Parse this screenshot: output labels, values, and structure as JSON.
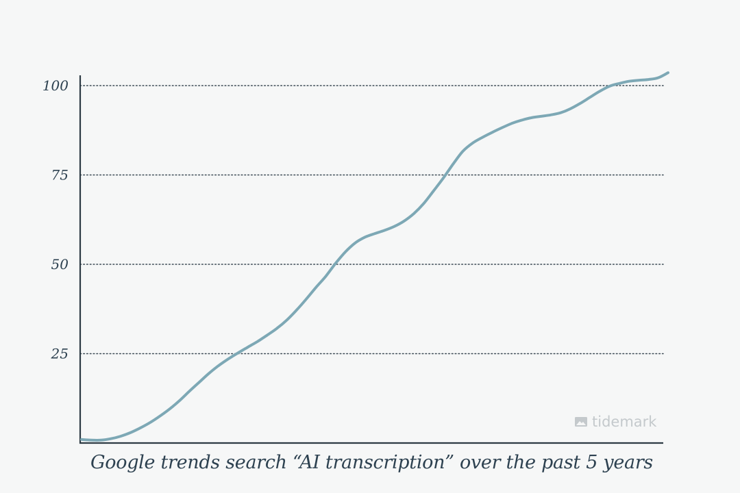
{
  "chart_data": {
    "type": "line",
    "title": "Google trends search “AI transcription” over the past 5 years",
    "xlabel": "",
    "ylabel": "",
    "ylim": [
      0,
      100
    ],
    "yticks": [
      25,
      50,
      75,
      100
    ],
    "yticklabels": [
      "25",
      "50",
      "75",
      "100"
    ],
    "grid": "horizontal dotted",
    "series": [
      {
        "color": "#7da8b5",
        "x": [
          0,
          1,
          2,
          3,
          4,
          5,
          6,
          7,
          8,
          9,
          10,
          11,
          12,
          13,
          14,
          15,
          16,
          17,
          18,
          19,
          20,
          21,
          22,
          23,
          24,
          25,
          26,
          27,
          28,
          29,
          30,
          31,
          32,
          33,
          34,
          35,
          36,
          37,
          38,
          39,
          40,
          41,
          42,
          43,
          44,
          45,
          46,
          47,
          48,
          49,
          50,
          51,
          52,
          53,
          54,
          55,
          56,
          57,
          58,
          59,
          60
        ],
        "values": [
          1.0,
          0.8,
          0.8,
          1.2,
          1.9,
          2.9,
          4.2,
          5.7,
          7.5,
          9.5,
          11.8,
          14.4,
          16.9,
          19.4,
          21.6,
          23.5,
          25.2,
          26.8,
          28.4,
          30.2,
          32.1,
          34.4,
          37.2,
          40.3,
          43.6,
          46.7,
          50.3,
          53.5,
          56.0,
          57.6,
          58.6,
          59.5,
          60.6,
          62.1,
          64.2,
          67.0,
          70.5,
          74.1,
          78.0,
          81.6,
          83.9,
          85.5,
          86.9,
          88.2,
          89.4,
          90.3,
          91.0,
          91.4,
          91.8,
          92.4,
          93.5,
          95.0,
          96.7,
          98.4,
          99.8,
          100.6,
          101.2,
          101.5,
          101.7,
          102.2,
          103.6
        ]
      }
    ]
  },
  "caption": "Google trends search “AI transcription” over the past 5 years",
  "watermark": {
    "text": "tidemark",
    "icon": "image-icon"
  }
}
